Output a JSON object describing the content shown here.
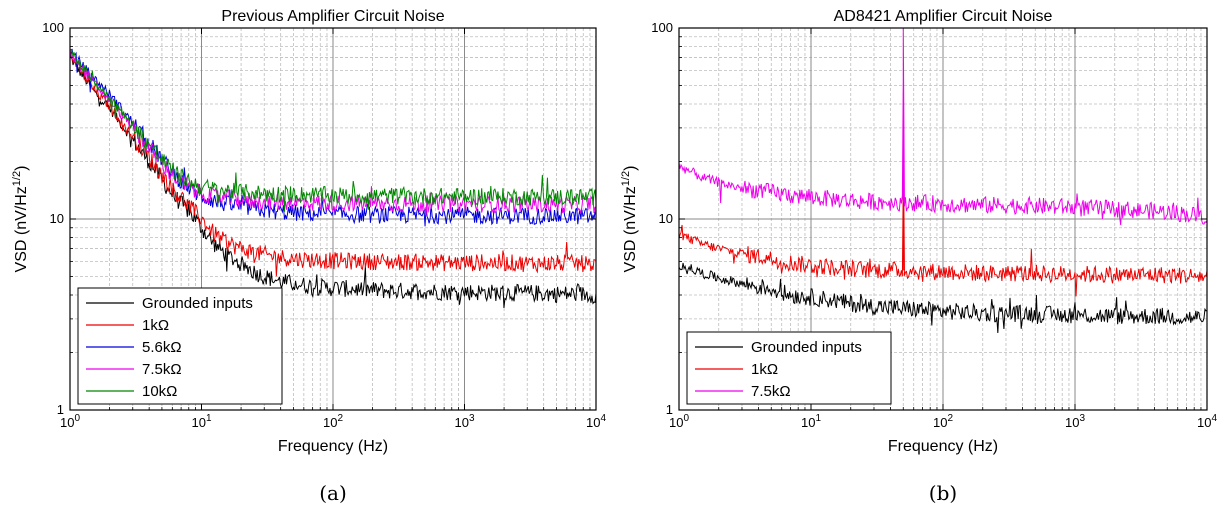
{
  "figure": {
    "captions": [
      "(a)",
      "(b)"
    ]
  },
  "chart_data": [
    {
      "type": "line",
      "title": "Previous Amplifier Circuit Noise",
      "xlabel": "Frequency (Hz)",
      "ylabel": "VSD (nV/Hz",
      "ylabel_sup": "1/2",
      "ylabel_end": ")",
      "xscale": "log",
      "yscale": "log",
      "xlim": [
        1,
        10000
      ],
      "ylim": [
        1,
        100
      ],
      "x_ticks": [
        {
          "v": 1,
          "b": "10",
          "e": "0"
        },
        {
          "v": 10,
          "b": "10",
          "e": "1"
        },
        {
          "v": 100,
          "b": "10",
          "e": "2"
        },
        {
          "v": 1000,
          "b": "10",
          "e": "3"
        },
        {
          "v": 10000,
          "b": "10",
          "e": "4"
        }
      ],
      "y_ticks": [
        {
          "v": 1,
          "label": "1"
        },
        {
          "v": 10,
          "label": "10"
        },
        {
          "v": 100,
          "label": "100"
        }
      ],
      "grid": true,
      "legend_position": "bottom-left",
      "series": [
        {
          "name": "Grounded inputs",
          "color": "#000000",
          "x": [
            1,
            1.5,
            2,
            3,
            4,
            5,
            6,
            7,
            8,
            9,
            10,
            12,
            15,
            20,
            25,
            30,
            40,
            50,
            60,
            80,
            100,
            150,
            200,
            300,
            500,
            700,
            1000,
            2000,
            3000,
            5000,
            7000,
            10000
          ],
          "y": [
            70,
            47,
            38,
            26,
            20,
            16,
            13.5,
            12,
            11,
            10,
            9,
            7.6,
            6.6,
            5.8,
            5.3,
            5.0,
            4.7,
            4.6,
            4.5,
            4.4,
            4.35,
            4.3,
            4.25,
            4.2,
            4.2,
            4.15,
            4.15,
            4.1,
            4.1,
            4.05,
            4.05,
            4.0
          ]
        },
        {
          "name": "1kΩ",
          "color": "#ee0000",
          "x": [
            1,
            1.5,
            2,
            3,
            4,
            5,
            6,
            7,
            8,
            9,
            10,
            12,
            15,
            20,
            25,
            30,
            40,
            50,
            60,
            80,
            100,
            150,
            200,
            300,
            500,
            700,
            1000,
            2000,
            3000,
            5000,
            7000,
            10000
          ],
          "y": [
            72,
            48,
            39,
            27,
            21,
            17,
            14.5,
            13,
            11.8,
            10.8,
            10,
            8.6,
            7.6,
            7.0,
            6.7,
            6.5,
            6.3,
            6.2,
            6.15,
            6.1,
            6.05,
            6.0,
            6.0,
            5.95,
            5.95,
            5.9,
            5.9,
            5.9,
            5.85,
            5.85,
            5.85,
            5.8
          ]
        },
        {
          "name": "5.6kΩ",
          "color": "#0000dd",
          "x": [
            1,
            1.5,
            2,
            3,
            4,
            5,
            6,
            7,
            8,
            9,
            10,
            12,
            15,
            20,
            25,
            30,
            40,
            50,
            60,
            80,
            100,
            150,
            200,
            300,
            500,
            700,
            1000,
            2000,
            3000,
            5000,
            7000,
            10000
          ],
          "y": [
            76,
            55,
            45,
            32,
            25,
            20.5,
            17.5,
            15.8,
            14.6,
            13.8,
            13.2,
            12.6,
            12.0,
            11.6,
            11.3,
            11.1,
            10.9,
            10.8,
            10.7,
            10.65,
            10.6,
            10.55,
            10.5,
            10.5,
            10.5,
            10.45,
            10.45,
            10.4,
            10.4,
            10.4,
            10.35,
            10.3
          ]
        },
        {
          "name": "7.5kΩ",
          "color": "#ee00ee",
          "x": [
            1,
            1.5,
            2,
            3,
            4,
            5,
            6,
            7,
            8,
            9,
            10,
            12,
            15,
            20,
            25,
            30,
            40,
            50,
            60,
            80,
            100,
            150,
            200,
            300,
            500,
            700,
            1000,
            2000,
            3000,
            5000,
            7000,
            10000
          ],
          "y": [
            74,
            52,
            42,
            30,
            23.5,
            19.5,
            17,
            15.5,
            14.6,
            14.0,
            13.6,
            13.2,
            12.9,
            12.6,
            12.5,
            12.4,
            12.3,
            12.25,
            12.2,
            12.15,
            12.1,
            12.1,
            12.05,
            12.0,
            12.0,
            12.0,
            12.0,
            11.95,
            11.95,
            11.9,
            11.9,
            11.9
          ]
        },
        {
          "name": "10kΩ",
          "color": "#008800",
          "x": [
            1,
            1.5,
            2,
            3,
            4,
            5,
            6,
            7,
            8,
            9,
            10,
            12,
            15,
            20,
            25,
            30,
            40,
            50,
            60,
            80,
            100,
            150,
            200,
            300,
            500,
            700,
            1000,
            2000,
            3000,
            5000,
            7000,
            10000
          ],
          "y": [
            75,
            53,
            43,
            31,
            24.5,
            20.5,
            18,
            16.6,
            15.8,
            15.2,
            14.8,
            14.4,
            14.1,
            13.8,
            13.7,
            13.6,
            13.5,
            13.45,
            13.4,
            13.35,
            13.3,
            13.25,
            13.2,
            13.2,
            13.15,
            13.15,
            13.1,
            13.1,
            13.05,
            13.05,
            13.0,
            13.0
          ]
        }
      ]
    },
    {
      "type": "line",
      "title": "AD8421 Amplifier Circuit Noise",
      "xlabel": "Frequency (Hz)",
      "ylabel": "VSD (nV/Hz",
      "ylabel_sup": "1/2",
      "ylabel_end": ")",
      "xscale": "log",
      "yscale": "log",
      "xlim": [
        1,
        10000
      ],
      "ylim": [
        1,
        100
      ],
      "x_ticks": [
        {
          "v": 1,
          "b": "10",
          "e": "0"
        },
        {
          "v": 10,
          "b": "10",
          "e": "1"
        },
        {
          "v": 100,
          "b": "10",
          "e": "2"
        },
        {
          "v": 1000,
          "b": "10",
          "e": "3"
        },
        {
          "v": 10000,
          "b": "10",
          "e": "4"
        }
      ],
      "y_ticks": [
        {
          "v": 1,
          "label": "1"
        },
        {
          "v": 10,
          "label": "10"
        },
        {
          "v": 100,
          "label": "100"
        }
      ],
      "grid": true,
      "legend_position": "bottom-left",
      "series": [
        {
          "name": "Grounded inputs",
          "color": "#000000",
          "x": [
            1,
            1.5,
            2,
            3,
            5,
            7,
            10,
            15,
            20,
            30,
            50,
            70,
            100,
            150,
            200,
            300,
            500,
            700,
            1000,
            2000,
            3000,
            5000,
            7000,
            10000
          ],
          "y": [
            5.8,
            5.2,
            4.9,
            4.6,
            4.3,
            4.0,
            3.9,
            3.75,
            3.6,
            3.5,
            3.4,
            3.35,
            3.3,
            3.25,
            3.2,
            3.2,
            3.2,
            3.15,
            3.15,
            3.1,
            3.1,
            3.1,
            3.05,
            3.05
          ]
        },
        {
          "name": "1kΩ",
          "color": "#ee0000",
          "x": [
            1,
            1.5,
            2,
            3,
            5,
            7,
            10,
            15,
            20,
            30,
            49.5,
            50,
            50.5,
            70,
            100,
            150,
            200,
            300,
            500,
            700,
            1000,
            2000,
            3000,
            5000,
            7000,
            10000
          ],
          "y": [
            8.3,
            7.4,
            7.0,
            6.6,
            6.2,
            5.9,
            5.7,
            5.6,
            5.5,
            5.4,
            5.4,
            27,
            5.4,
            5.3,
            5.3,
            5.25,
            5.2,
            5.2,
            5.2,
            5.15,
            5.15,
            5.1,
            5.1,
            5.1,
            5.05,
            5.0
          ]
        },
        {
          "name": "7.5kΩ",
          "color": "#ee00ee",
          "x": [
            1,
            1.5,
            2,
            3,
            5,
            7,
            10,
            15,
            20,
            30,
            49.5,
            50,
            50.5,
            70,
            100,
            150,
            200,
            300,
            500,
            700,
            1000,
            2000,
            3000,
            5000,
            7000,
            10000
          ],
          "y": [
            19,
            16.5,
            15.5,
            14.5,
            13.8,
            13.3,
            13.0,
            12.7,
            12.5,
            12.3,
            12.2,
            100,
            12.2,
            12.1,
            12.0,
            11.9,
            11.8,
            11.8,
            11.7,
            11.6,
            11.5,
            11.3,
            11.1,
            10.9,
            10.6,
            10.3
          ]
        }
      ]
    }
  ]
}
